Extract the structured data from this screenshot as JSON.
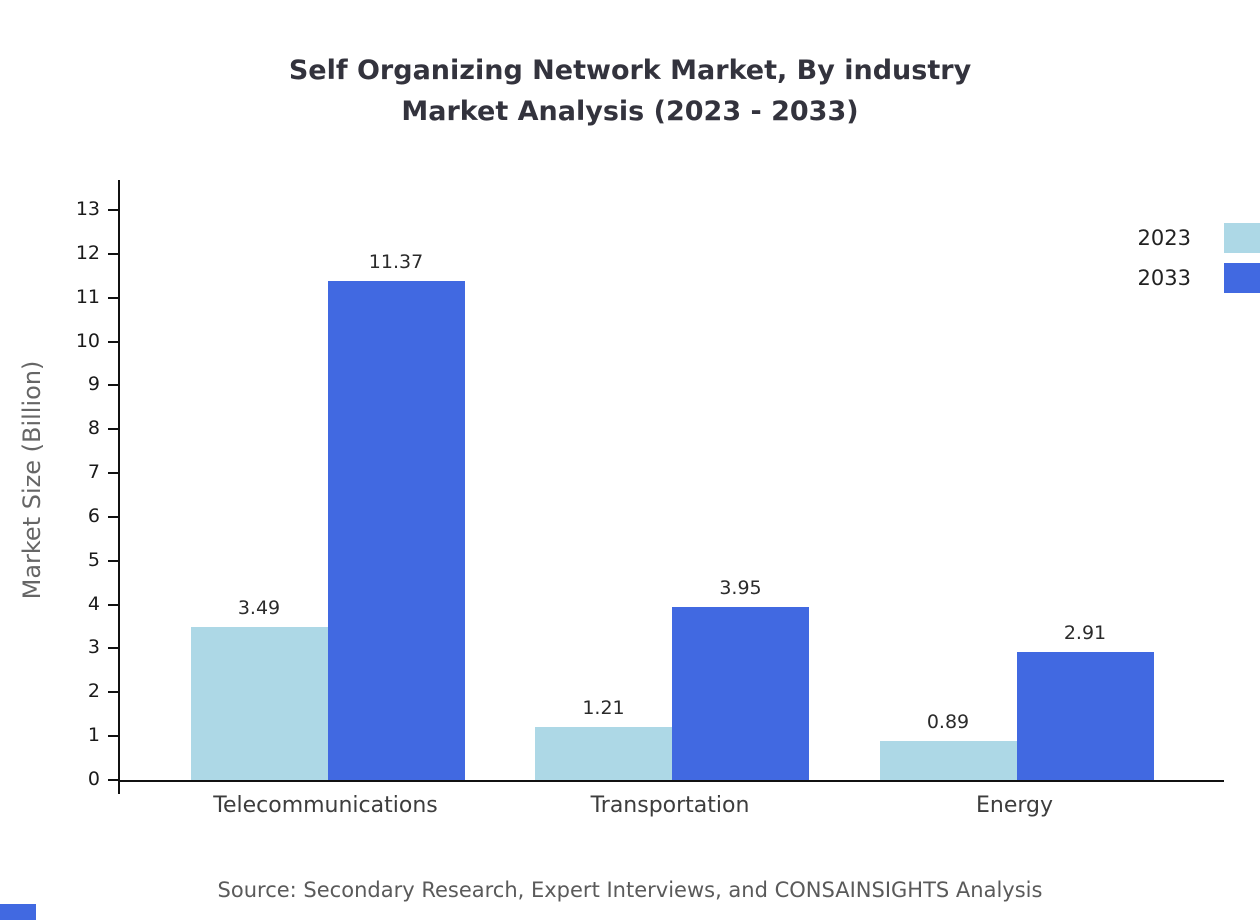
{
  "title_lines": [
    "Self Organizing Network Market, By industry",
    "Market Analysis (2023 - 2033)"
  ],
  "source_text": "Source: Secondary Research, Expert Interviews, and CONSAINSIGHTS Analysis",
  "colors": {
    "series_2023": "#add8e6",
    "series_2033": "#4169e1",
    "axis": "#111111",
    "title_text": "#33333d",
    "muted_text": "#666666"
  },
  "chart_data": {
    "type": "bar",
    "title": "Self Organizing Network Market, By industry Market Analysis (2023 - 2033)",
    "categories": [
      "Telecommunications",
      "Transportation",
      "Energy"
    ],
    "series": [
      {
        "name": "2023",
        "color": "#add8e6",
        "values": [
          3.49,
          1.21,
          0.89
        ]
      },
      {
        "name": "2033",
        "color": "#4169e1",
        "values": [
          11.37,
          3.95,
          2.91
        ]
      }
    ],
    "xlabel": "",
    "ylabel": "Market Size (Billion)",
    "ylim": [
      0,
      13
    ],
    "yticks": [
      0,
      1,
      2,
      3,
      4,
      5,
      6,
      7,
      8,
      9,
      10,
      11,
      12,
      13
    ],
    "grid": false,
    "legend_position": "top-right"
  }
}
